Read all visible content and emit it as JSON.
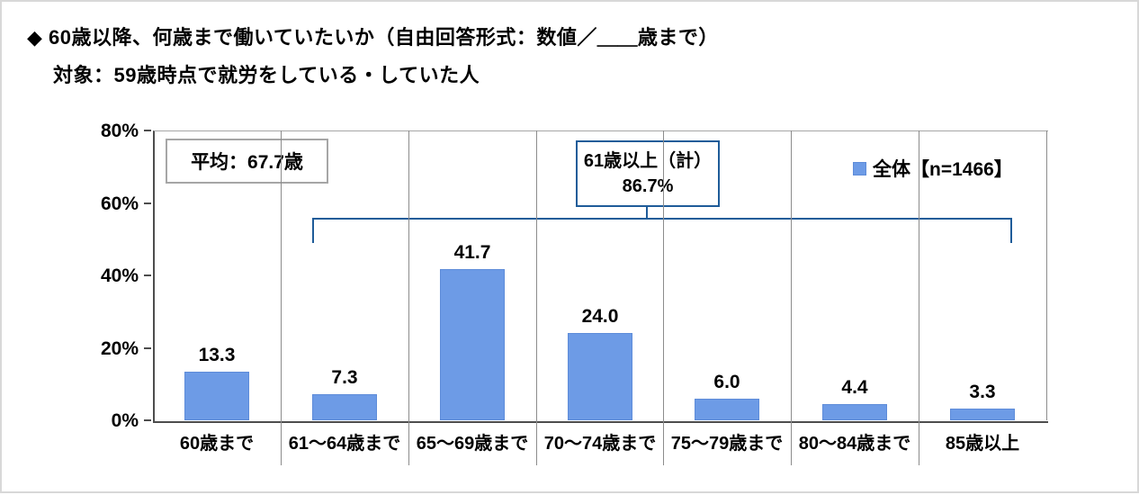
{
  "header": {
    "title": "◆ 60歳以降、何歳まで働いていたいか（自由回答形式：数値／＿＿歳まで）",
    "subtitle": "対象：59歳時点で就労をしている・していた人"
  },
  "chart_data": {
    "type": "bar",
    "title": "60歳以降、何歳まで働いていたいか（自由回答形式：数値／＿＿歳まで）",
    "subtitle": "対象：59歳時点で就労をしている・していた人",
    "categories": [
      "60歳まで",
      "61～64歳まで",
      "65～69歳まで",
      "70～74歳まで",
      "75～79歳まで",
      "80～84歳まで",
      "85歳以上"
    ],
    "values": [
      13.3,
      7.3,
      41.7,
      24.0,
      6.0,
      4.4,
      3.3
    ],
    "value_labels": [
      "13.3",
      "7.3",
      "41.7",
      "24.0",
      "6.0",
      "4.4",
      "3.3"
    ],
    "xlabel": "",
    "ylabel": "",
    "ylim": [
      0,
      80
    ],
    "y_ticks": [
      {
        "value": 80,
        "label": "80%"
      },
      {
        "value": 60,
        "label": "60%"
      },
      {
        "value": 40,
        "label": "40%"
      },
      {
        "value": 20,
        "label": "20%"
      },
      {
        "value": 0,
        "label": "0%"
      }
    ],
    "grid": "vertical category separators only, no horizontal gridlines",
    "legend": {
      "label": "全体【n=1466】",
      "position": "top-right",
      "marker_color": "#6d9be6"
    },
    "annotations": {
      "average_box": "平均：67.7歳",
      "group_box_line1": "61歳以上（計）",
      "group_box_line2": "86.7%",
      "bracket_span_categories": [
        "61～64歳まで",
        "85歳以上"
      ]
    },
    "colors": {
      "bar_fill": "#6d9be6",
      "bar_border": "#5e8cd9",
      "accent_blue": "#1f5c99",
      "axis": "#4d4d4d",
      "separator": "#8c8c8c",
      "annotation_box_border": "#a6a6a6"
    }
  }
}
